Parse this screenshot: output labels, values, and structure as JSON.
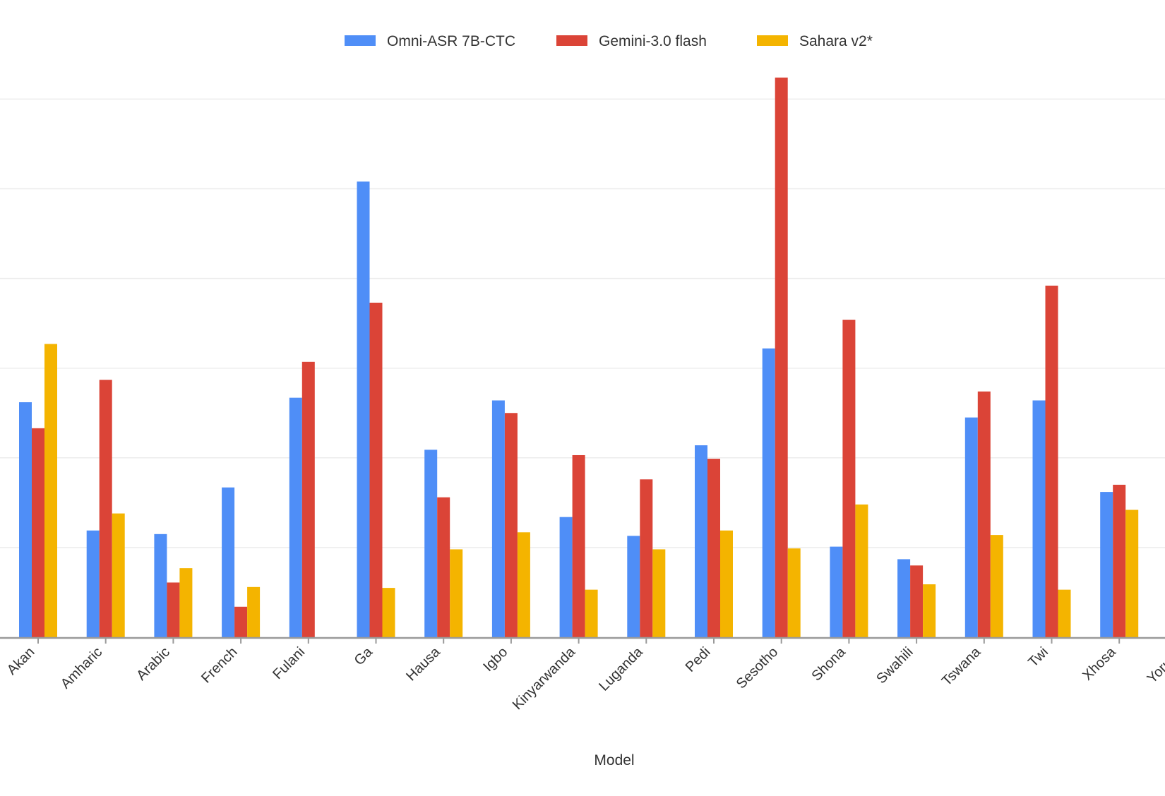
{
  "chart_data": {
    "type": "bar",
    "title": "",
    "xlabel": "Model",
    "ylabel": "",
    "legend_position": "top-center",
    "grid": true,
    "ylim": [
      0,
      62
    ],
    "categories": [
      "Akan",
      "Amharic",
      "Arabic",
      "French",
      "Fulani",
      "Ga",
      "Hausa",
      "Igbo",
      "Kinyarwanda",
      "Luganda",
      "Pedi",
      "Sesotho",
      "Shona",
      "Swahili",
      "Tswana",
      "Twi",
      "Xhosa",
      "Yoruba"
    ],
    "series": [
      {
        "name": "Omni-ASR 7B-CTC",
        "color": "#4f8ef7",
        "values": [
          26.2,
          11.9,
          11.5,
          16.7,
          26.7,
          50.8,
          20.9,
          26.4,
          13.4,
          11.3,
          21.4,
          32.2,
          10.1,
          8.7,
          24.5,
          26.4,
          16.2,
          null
        ]
      },
      {
        "name": "Gemini-3.0 flash",
        "color": "#db4437",
        "values": [
          23.3,
          28.7,
          6.1,
          3.4,
          30.7,
          37.3,
          15.6,
          25.0,
          20.3,
          17.6,
          19.9,
          62.4,
          35.4,
          8.0,
          27.4,
          39.2,
          17.0,
          null
        ]
      },
      {
        "name": "Sahara v2*",
        "color": "#f4b400",
        "values": [
          32.7,
          13.8,
          7.7,
          5.6,
          null,
          5.5,
          9.8,
          11.7,
          5.3,
          9.8,
          11.9,
          9.9,
          14.8,
          5.9,
          11.4,
          5.3,
          14.2,
          null
        ]
      }
    ]
  }
}
